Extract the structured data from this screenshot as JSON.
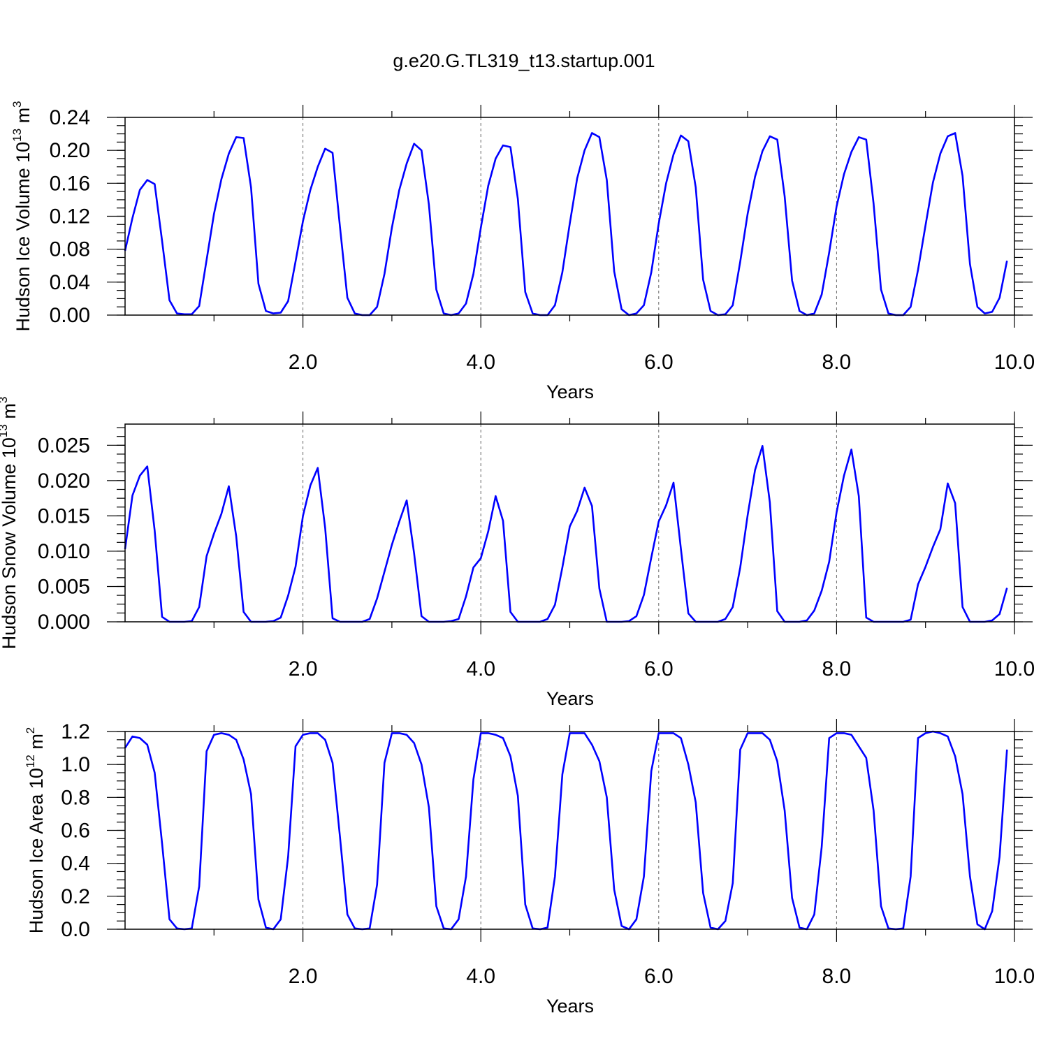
{
  "title": "g.e20.G.TL319_t13.startup.001",
  "colors": {
    "line": "#0000ff",
    "axis": "#000000",
    "grid": "#666666"
  },
  "chart_data": [
    {
      "type": "line",
      "ylabel_main": "Hudson Ice Volume 10",
      "ylabel_exp": "13",
      "ylabel_unit": " m",
      "ylabel_unit_exp": "3",
      "xlabel": "Years",
      "xlim": [
        0,
        10
      ],
      "ylim": [
        0,
        0.24
      ],
      "x_ticks": [
        2,
        4,
        6,
        8,
        10
      ],
      "x_tick_labels": [
        "2.0",
        "4.0",
        "6.0",
        "8.0",
        "10.0"
      ],
      "y_ticks": [
        0,
        0.04,
        0.08,
        0.12,
        0.16,
        0.2,
        0.24
      ],
      "y_tick_labels": [
        "0.00",
        "0.04",
        "0.08",
        "0.12",
        "0.16",
        "0.20",
        "0.24"
      ],
      "vgrid_x": [
        2,
        4,
        6,
        8
      ],
      "series": [
        {
          "x0": 0.0,
          "dx": 0.08333,
          "values": [
            0.078,
            0.118,
            0.152,
            0.164,
            0.159,
            0.09,
            0.018,
            0.002,
            0.001,
            0.001,
            0.011,
            0.067,
            0.123,
            0.165,
            0.196,
            0.216,
            0.215,
            0.155,
            0.038,
            0.005,
            0.002,
            0.003,
            0.017,
            0.065,
            0.114,
            0.152,
            0.18,
            0.202,
            0.197,
            0.107,
            0.021,
            0.002,
            0.0,
            0.0,
            0.01,
            0.05,
            0.106,
            0.152,
            0.184,
            0.208,
            0.2,
            0.134,
            0.031,
            0.002,
            0.0,
            0.002,
            0.014,
            0.05,
            0.106,
            0.157,
            0.19,
            0.206,
            0.204,
            0.141,
            0.028,
            0.002,
            0.0,
            0.0,
            0.012,
            0.052,
            0.111,
            0.166,
            0.2,
            0.221,
            0.216,
            0.164,
            0.053,
            0.007,
            0.0,
            0.002,
            0.012,
            0.052,
            0.111,
            0.16,
            0.195,
            0.218,
            0.211,
            0.155,
            0.043,
            0.005,
            0.0,
            0.001,
            0.012,
            0.065,
            0.123,
            0.168,
            0.199,
            0.217,
            0.213,
            0.144,
            0.042,
            0.005,
            0.0,
            0.002,
            0.025,
            0.076,
            0.132,
            0.171,
            0.198,
            0.216,
            0.213,
            0.135,
            0.031,
            0.002,
            0.0,
            0.0,
            0.01,
            0.055,
            0.109,
            0.161,
            0.196,
            0.217,
            0.221,
            0.169,
            0.062,
            0.01,
            0.002,
            0.004,
            0.021,
            0.066
          ]
        }
      ]
    },
    {
      "type": "line",
      "ylabel_main": "Hudson Snow Volume 10",
      "ylabel_exp": "13",
      "ylabel_unit": " m",
      "ylabel_unit_exp": "3",
      "xlabel": "Years",
      "xlim": [
        0,
        10
      ],
      "ylim": [
        0,
        0.028
      ],
      "x_ticks": [
        2,
        4,
        6,
        8,
        10
      ],
      "x_tick_labels": [
        "2.0",
        "4.0",
        "6.0",
        "8.0",
        "10.0"
      ],
      "y_ticks": [
        0,
        0.005,
        0.01,
        0.015,
        0.02,
        0.025
      ],
      "y_tick_labels": [
        "0.000",
        "0.005",
        "0.010",
        "0.015",
        "0.020",
        "0.025"
      ],
      "vgrid_x": [
        2,
        4,
        6,
        8
      ],
      "series": [
        {
          "x0": 0.0,
          "dx": 0.08333,
          "values": [
            0.0103,
            0.0179,
            0.0207,
            0.022,
            0.0129,
            0.0007,
            0.0,
            0.0,
            0.0,
            0.0001,
            0.0021,
            0.0093,
            0.0125,
            0.0153,
            0.0192,
            0.0121,
            0.0014,
            0.0,
            0.0,
            0.0,
            0.0001,
            0.0006,
            0.0037,
            0.0078,
            0.015,
            0.0193,
            0.0218,
            0.0133,
            0.0005,
            0.0,
            0.0,
            0.0,
            0.0,
            0.0004,
            0.0033,
            0.0071,
            0.0109,
            0.0142,
            0.0172,
            0.0097,
            0.0008,
            0.0,
            0.0,
            0.0,
            0.0001,
            0.0004,
            0.0036,
            0.0077,
            0.009,
            0.0128,
            0.0178,
            0.0143,
            0.0014,
            0.0,
            0.0,
            0.0,
            0.0,
            0.0004,
            0.0024,
            0.0077,
            0.0135,
            0.0157,
            0.019,
            0.0164,
            0.0047,
            0.0,
            0.0,
            0.0,
            0.0001,
            0.0008,
            0.0038,
            0.0091,
            0.0142,
            0.0165,
            0.0197,
            0.0103,
            0.0012,
            0.0,
            0.0,
            0.0,
            0.0,
            0.0004,
            0.0021,
            0.0077,
            0.0151,
            0.0215,
            0.0249,
            0.0169,
            0.0015,
            0.0,
            0.0,
            0.0,
            0.0002,
            0.0016,
            0.0044,
            0.0085,
            0.0155,
            0.0207,
            0.0244,
            0.0178,
            0.0006,
            0.0,
            0.0,
            0.0,
            0.0,
            0.0,
            0.0003,
            0.0053,
            0.0078,
            0.0106,
            0.0131,
            0.0196,
            0.0168,
            0.0021,
            0.0,
            0.0,
            0.0,
            0.0002,
            0.0011,
            0.0048
          ]
        }
      ]
    },
    {
      "type": "line",
      "ylabel_main": "Hudson Ice Area 10",
      "ylabel_exp": "12",
      "ylabel_unit": " m",
      "ylabel_unit_exp": "2",
      "xlabel": "Years",
      "xlim": [
        0,
        10
      ],
      "ylim": [
        0,
        1.2
      ],
      "x_ticks": [
        2,
        4,
        6,
        8,
        10
      ],
      "x_tick_labels": [
        "2.0",
        "4.0",
        "6.0",
        "8.0",
        "10.0"
      ],
      "y_ticks": [
        0,
        0.2,
        0.4,
        0.6,
        0.8,
        1.0,
        1.2
      ],
      "y_tick_labels": [
        "0.0",
        "0.2",
        "0.4",
        "0.6",
        "0.8",
        "1.0",
        "1.2"
      ],
      "vgrid_x": [
        2,
        4,
        6,
        8
      ],
      "series": [
        {
          "x0": 0.0,
          "dx": 0.08333,
          "values": [
            1.1,
            1.17,
            1.16,
            1.12,
            0.95,
            0.52,
            0.06,
            0.005,
            0.0,
            0.005,
            0.26,
            1.08,
            1.18,
            1.19,
            1.18,
            1.15,
            1.03,
            0.82,
            0.18,
            0.01,
            0.0,
            0.06,
            0.44,
            1.11,
            1.18,
            1.19,
            1.19,
            1.15,
            1.01,
            0.56,
            0.09,
            0.005,
            0.0,
            0.005,
            0.27,
            1.01,
            1.19,
            1.19,
            1.18,
            1.13,
            1.0,
            0.74,
            0.14,
            0.005,
            0.0,
            0.06,
            0.32,
            0.91,
            1.19,
            1.19,
            1.18,
            1.16,
            1.05,
            0.81,
            0.15,
            0.005,
            0.0,
            0.01,
            0.32,
            0.94,
            1.19,
            1.19,
            1.19,
            1.12,
            1.02,
            0.8,
            0.24,
            0.02,
            0.0,
            0.06,
            0.32,
            0.96,
            1.19,
            1.19,
            1.19,
            1.16,
            1.0,
            0.77,
            0.22,
            0.01,
            0.0,
            0.05,
            0.28,
            1.09,
            1.19,
            1.19,
            1.19,
            1.15,
            1.02,
            0.72,
            0.19,
            0.01,
            0.0,
            0.09,
            0.5,
            1.16,
            1.19,
            1.19,
            1.18,
            1.11,
            1.04,
            0.72,
            0.14,
            0.005,
            0.0,
            0.005,
            0.32,
            1.16,
            1.19,
            1.2,
            1.19,
            1.17,
            1.05,
            0.82,
            0.32,
            0.03,
            0.0,
            0.11,
            0.44,
            1.09
          ]
        }
      ]
    }
  ]
}
